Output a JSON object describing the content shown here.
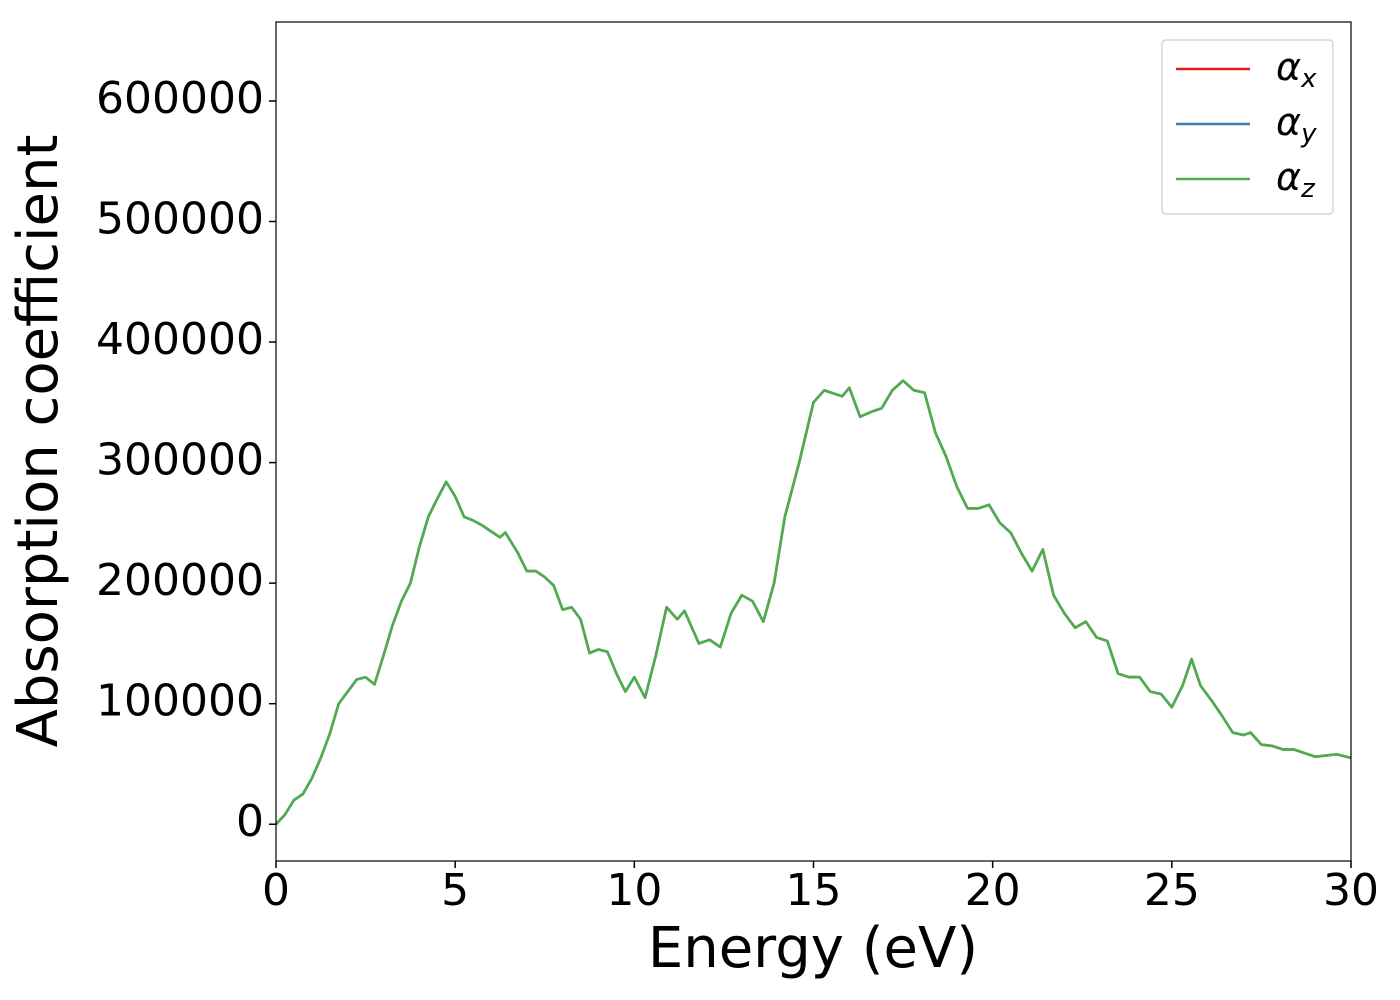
{
  "chart_data": {
    "type": "line",
    "xlabel": "Energy (eV)",
    "ylabel": "Absorption coefficient",
    "x": [
      0,
      0.25,
      0.5,
      0.75,
      1.0,
      1.25,
      1.5,
      1.75,
      2.0,
      2.25,
      2.5,
      2.75,
      3.0,
      3.25,
      3.5,
      3.75,
      4.0,
      4.25,
      4.5,
      4.75,
      5.0,
      5.25,
      5.5,
      5.75,
      6.0,
      6.25,
      6.4,
      6.75,
      7.0,
      7.25,
      7.5,
      7.75,
      8.0,
      8.25,
      8.5,
      8.75,
      9.0,
      9.25,
      9.5,
      9.75,
      10.0,
      10.3,
      10.6,
      10.9,
      11.2,
      11.4,
      11.8,
      12.1,
      12.4,
      12.7,
      13.0,
      13.3,
      13.6,
      13.9,
      14.2,
      14.6,
      15.0,
      15.3,
      15.6,
      15.8,
      16.0,
      16.3,
      16.6,
      16.9,
      17.2,
      17.5,
      17.8,
      18.1,
      18.4,
      18.7,
      19.0,
      19.3,
      19.6,
      19.9,
      20.2,
      20.5,
      20.8,
      21.1,
      21.4,
      21.7,
      22.0,
      22.3,
      22.6,
      22.9,
      23.2,
      23.5,
      23.8,
      24.1,
      24.4,
      24.7,
      25.0,
      25.3,
      25.55,
      25.8,
      26.1,
      26.4,
      26.7,
      27.0,
      27.2,
      27.5,
      27.8,
      28.1,
      28.4,
      28.7,
      29.0,
      29.3,
      29.6,
      30.0
    ],
    "series": [
      {
        "name": "αx",
        "color": "#e41a1c",
        "values": [
          0,
          8000,
          20000,
          25000,
          38000,
          55000,
          75000,
          100000,
          110000,
          120000,
          122000,
          116000,
          140000,
          165000,
          185000,
          200000,
          230000,
          255000,
          270000,
          284000,
          272000,
          255000,
          252000,
          248000,
          243000,
          238000,
          242000,
          225000,
          210000,
          210000,
          205000,
          198000,
          178000,
          180000,
          170000,
          142000,
          145000,
          143000,
          125000,
          110000,
          122000,
          105000,
          140000,
          180000,
          170000,
          177000,
          150000,
          153000,
          147000,
          175000,
          190000,
          185000,
          168000,
          200000,
          255000,
          300000,
          350000,
          360000,
          357000,
          355000,
          362000,
          338000,
          342000,
          345000,
          360000,
          368000,
          360000,
          358000,
          325000,
          305000,
          280000,
          262000,
          262000,
          265000,
          250000,
          242000,
          225000,
          210000,
          228000,
          190000,
          175000,
          163000,
          168000,
          155000,
          152000,
          125000,
          122000,
          122000,
          110000,
          108000,
          97000,
          115000,
          137000,
          115000,
          103000,
          90000,
          76000,
          74000,
          76000,
          66000,
          65000,
          62000,
          62000,
          59000,
          56000,
          57000,
          58000,
          55000
        ]
      },
      {
        "name": "αy",
        "color": "#377eb8",
        "values": [
          0,
          8000,
          20000,
          25000,
          38000,
          55000,
          75000,
          100000,
          110000,
          120000,
          122000,
          116000,
          140000,
          165000,
          185000,
          200000,
          230000,
          255000,
          270000,
          284000,
          272000,
          255000,
          252000,
          248000,
          243000,
          238000,
          242000,
          225000,
          210000,
          210000,
          205000,
          198000,
          178000,
          180000,
          170000,
          142000,
          145000,
          143000,
          125000,
          110000,
          122000,
          105000,
          140000,
          180000,
          170000,
          177000,
          150000,
          153000,
          147000,
          175000,
          190000,
          185000,
          168000,
          200000,
          255000,
          300000,
          350000,
          360000,
          357000,
          355000,
          362000,
          338000,
          342000,
          345000,
          360000,
          368000,
          360000,
          358000,
          325000,
          305000,
          280000,
          262000,
          262000,
          265000,
          250000,
          242000,
          225000,
          210000,
          228000,
          190000,
          175000,
          163000,
          168000,
          155000,
          152000,
          125000,
          122000,
          122000,
          110000,
          108000,
          97000,
          115000,
          137000,
          115000,
          103000,
          90000,
          76000,
          74000,
          76000,
          66000,
          65000,
          62000,
          62000,
          59000,
          56000,
          57000,
          58000,
          55000
        ]
      },
      {
        "name": "αz",
        "color": "#4daf4a",
        "values": [
          0,
          8000,
          20000,
          25000,
          38000,
          55000,
          75000,
          100000,
          110000,
          120000,
          122000,
          116000,
          140000,
          165000,
          185000,
          200000,
          230000,
          255000,
          270000,
          284000,
          272000,
          255000,
          252000,
          248000,
          243000,
          238000,
          242000,
          225000,
          210000,
          210000,
          205000,
          198000,
          178000,
          180000,
          170000,
          142000,
          145000,
          143000,
          125000,
          110000,
          122000,
          105000,
          140000,
          180000,
          170000,
          177000,
          150000,
          153000,
          147000,
          175000,
          190000,
          185000,
          168000,
          200000,
          255000,
          300000,
          350000,
          360000,
          357000,
          355000,
          362000,
          338000,
          342000,
          345000,
          360000,
          368000,
          360000,
          358000,
          325000,
          305000,
          280000,
          262000,
          262000,
          265000,
          250000,
          242000,
          225000,
          210000,
          228000,
          190000,
          175000,
          163000,
          168000,
          155000,
          152000,
          125000,
          122000,
          122000,
          110000,
          108000,
          97000,
          115000,
          137000,
          115000,
          103000,
          90000,
          76000,
          74000,
          76000,
          66000,
          65000,
          62000,
          62000,
          59000,
          56000,
          57000,
          58000,
          55000
        ]
      }
    ],
    "xlim": [
      0,
      30
    ],
    "xticks": [
      0,
      5,
      10,
      15,
      20,
      25,
      30
    ],
    "ylim": [
      -30500,
      665500
    ],
    "yticks": [
      0,
      100000,
      200000,
      300000,
      400000,
      500000,
      600000
    ],
    "grid": false,
    "legend": "upper right"
  }
}
